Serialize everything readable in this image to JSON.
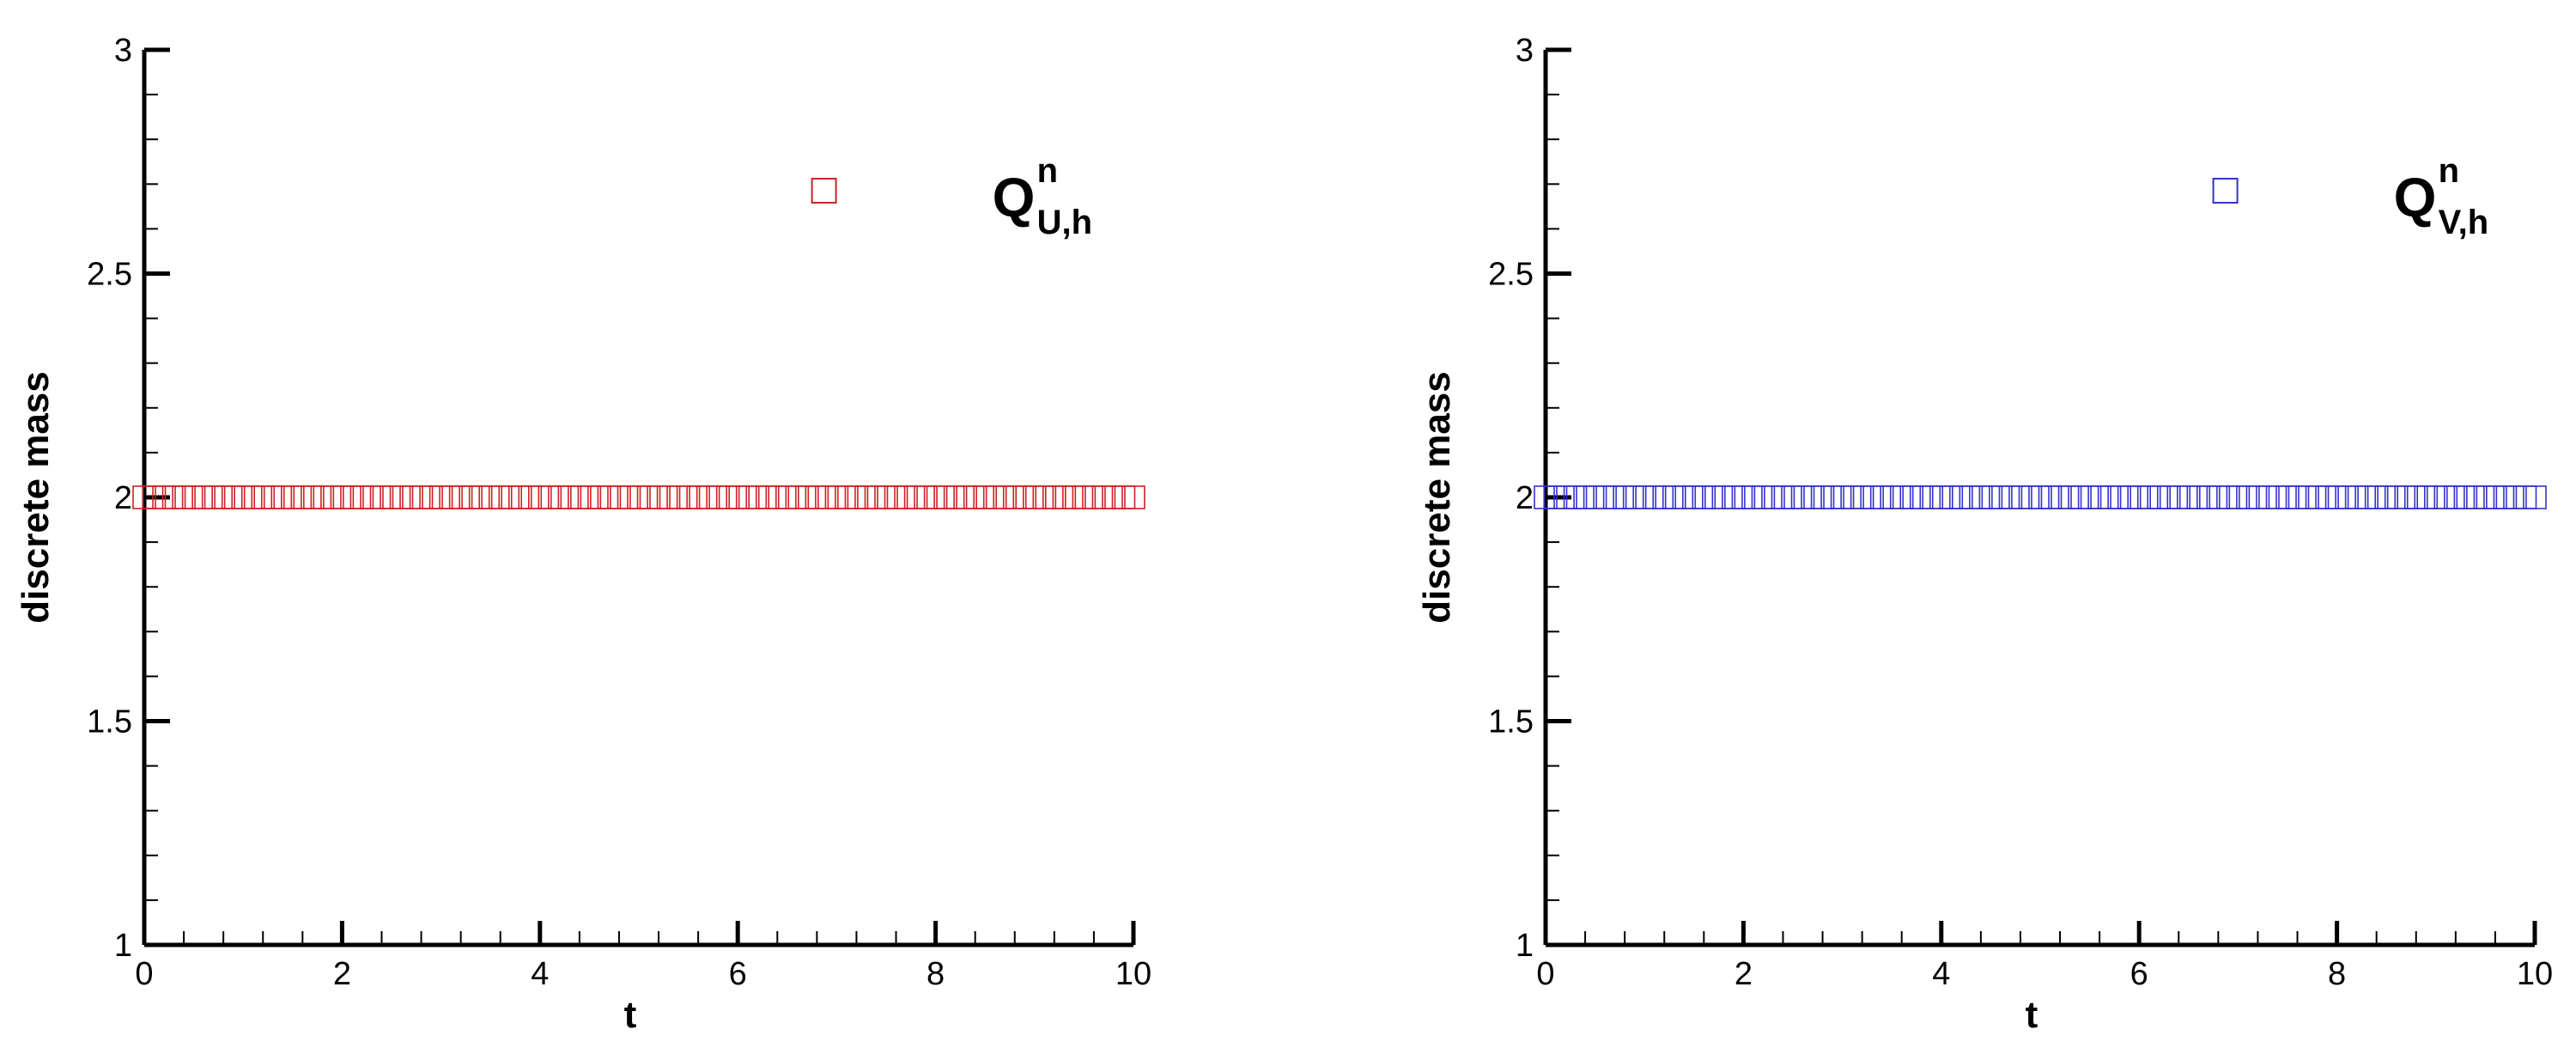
{
  "chart_data": [
    {
      "type": "scatter",
      "xlabel": "t",
      "ylabel": "discrete mass",
      "xlim": [
        0,
        10
      ],
      "ylim": [
        1,
        3
      ],
      "x_ticks": [
        "0",
        "2",
        "4",
        "6",
        "8",
        "10"
      ],
      "y_ticks": [
        "1",
        "1.5",
        "2",
        "2.5",
        "3"
      ],
      "marker": "square",
      "marker_color": "#cc2222",
      "legend": {
        "symbol": "Q",
        "superscript": "n",
        "subscript": "U,h",
        "placement": "top-right"
      },
      "series": [
        {
          "x_start": 0.0,
          "x_end": 10.0,
          "x_step": 0.1,
          "y": 2.0
        }
      ]
    },
    {
      "type": "scatter",
      "xlabel": "t",
      "ylabel": "discrete mass",
      "xlim": [
        0,
        10
      ],
      "ylim": [
        1,
        3
      ],
      "x_ticks": [
        "0",
        "2",
        "4",
        "6",
        "8",
        "10"
      ],
      "y_ticks": [
        "1",
        "1.5",
        "2",
        "2.5",
        "3"
      ],
      "marker": "square",
      "marker_color": "#3333cc",
      "legend": {
        "symbol": "Q",
        "superscript": "n",
        "subscript": "V,h",
        "placement": "top-right"
      },
      "series": [
        {
          "x_start": 0.0,
          "x_end": 10.0,
          "x_step": 0.1,
          "y": 2.0
        }
      ]
    }
  ]
}
